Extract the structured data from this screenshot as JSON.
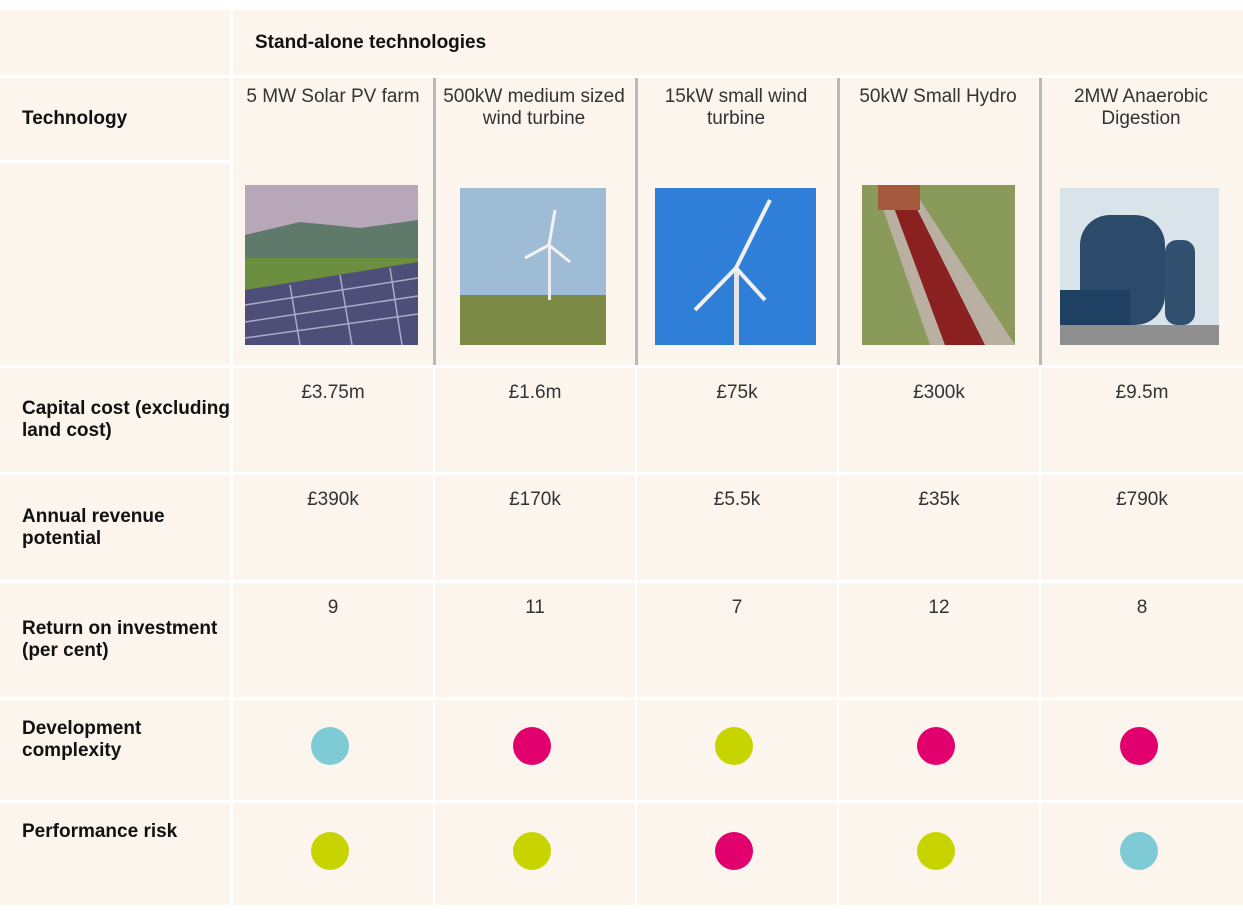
{
  "header": "Stand-alone technologies",
  "corner_label": "Technology",
  "columns": [
    "5 MW Solar PV farm",
    "500kW medium sized wind turbine",
    "15kW small wind turbine",
    "50kW Small Hydro",
    "2MW Anaerobic Digestion"
  ],
  "rows": [
    {
      "label": "Capital cost (excluding land cost)",
      "values": [
        "£3.75m",
        "£1.6m",
        "£75k",
        "£300k",
        "£9.5m"
      ]
    },
    {
      "label": "Annual revenue potential",
      "values": [
        "£390k",
        "£170k",
        "£5.5k",
        "£35k",
        "£790k"
      ]
    },
    {
      "label": "Return on investment (per cent)",
      "values": [
        9,
        11,
        7,
        12,
        8
      ]
    }
  ],
  "ratings": [
    {
      "label": "Development complexity",
      "colors": [
        "#7ecbd6",
        "#e2006f",
        "#c8d400",
        "#e2006f",
        "#e2006f"
      ]
    },
    {
      "label": "Performance risk",
      "colors": [
        "#c8d400",
        "#c8d400",
        "#e2006f",
        "#c8d400",
        "#7ecbd6"
      ]
    }
  ]
}
